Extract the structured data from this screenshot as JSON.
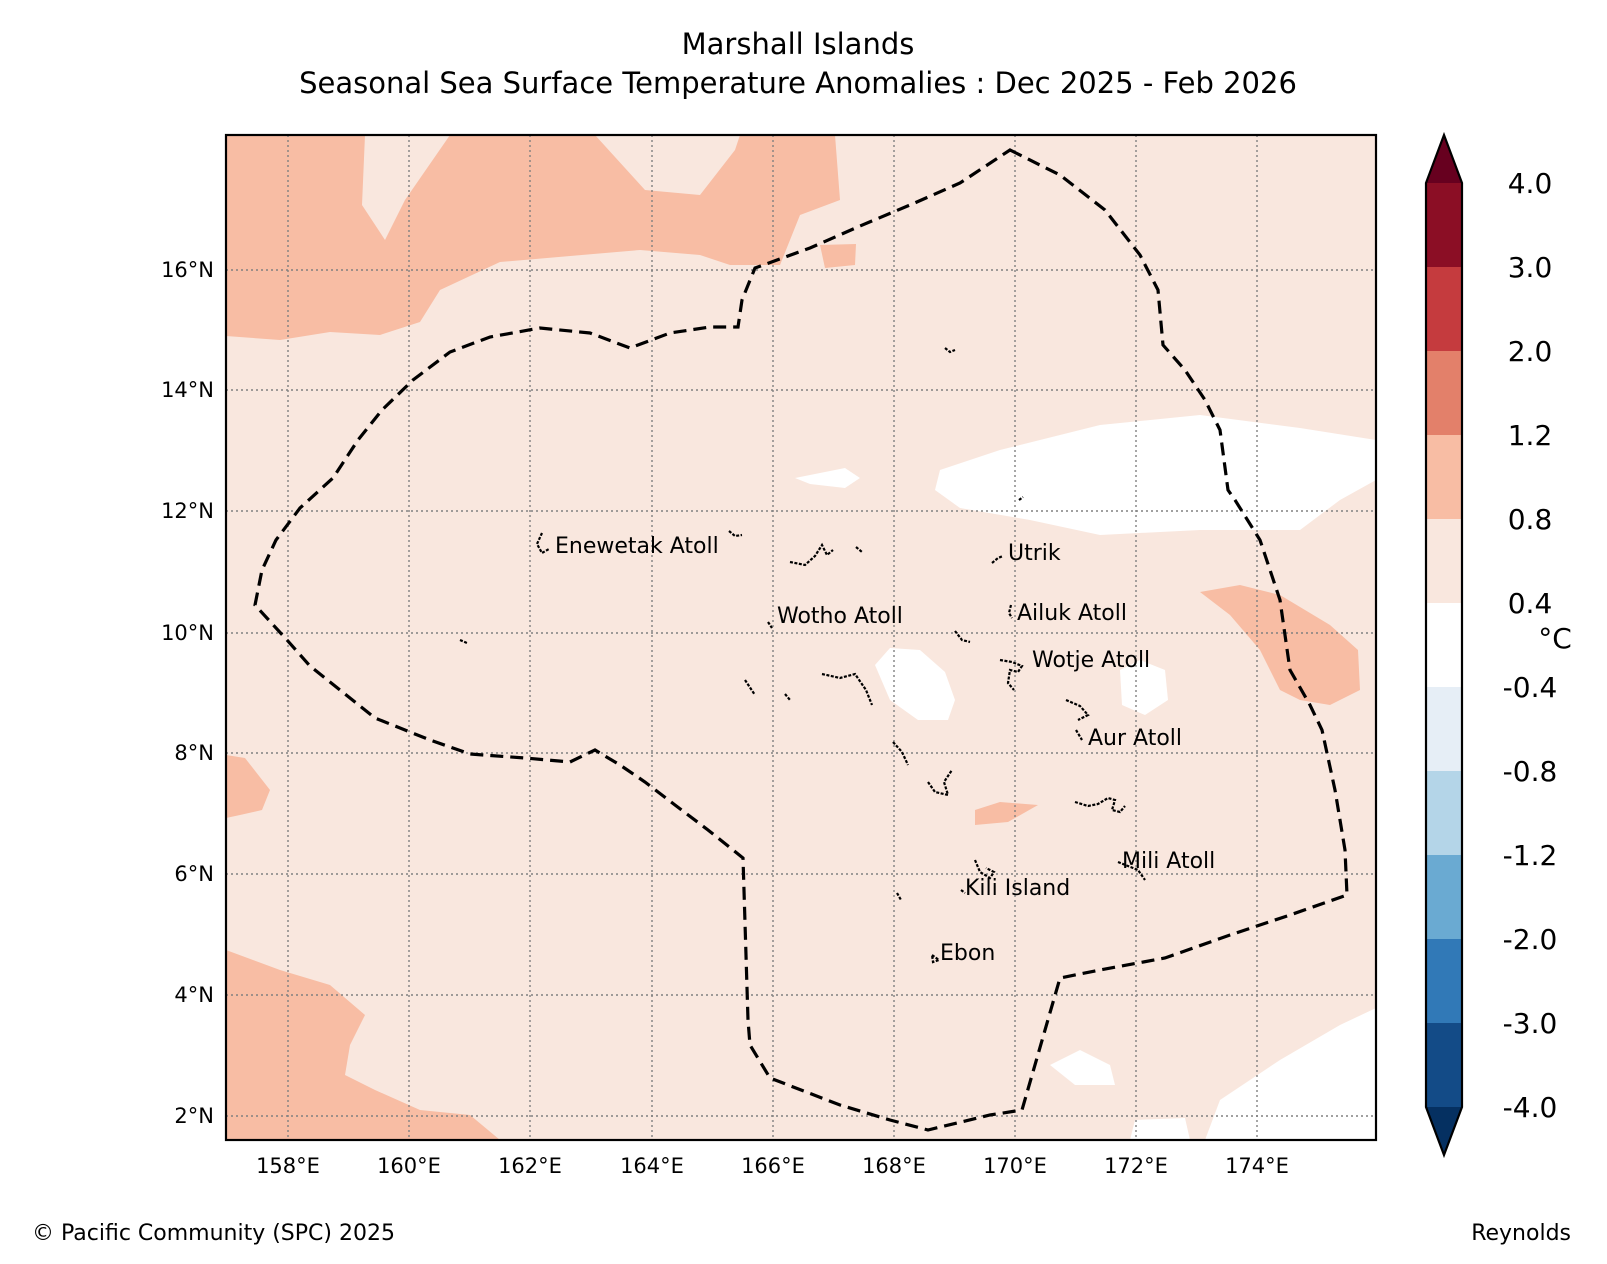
{
  "map": {
    "title_line1": "Marshall Islands",
    "title_line2": "Seasonal Sea Surface Temperature Anomalies : Dec 2025 - Feb 2026",
    "lat_labels": [
      "16°N",
      "14°N",
      "12°N",
      "10°N",
      "8°N",
      "6°N",
      "4°N",
      "2°N"
    ],
    "lon_labels": [
      "158°E",
      "160°E",
      "162°E",
      "164°E",
      "166°E",
      "168°E",
      "170°E",
      "172°E",
      "174°E"
    ],
    "places": [
      "Enewetak Atoll",
      "Utrik",
      "Ailuk Atoll",
      "Wotho Atoll",
      "Wotje Atoll",
      "Aur Atoll",
      "Mili Atoll",
      "Kili Island",
      "Ebon"
    ]
  },
  "colorbar": {
    "unit": "°C",
    "labels": [
      "4.0",
      "3.0",
      "2.0",
      "1.2",
      "0.8",
      "0.4",
      "-0.4",
      "-0.8",
      "-1.2",
      "-2.0",
      "-3.0",
      "-4.0"
    ],
    "colors": [
      "#67001f",
      "#8b0e25",
      "#c53b3e",
      "#e3806a",
      "#f8bda4",
      "#f9e7de",
      "#ffffff",
      "#e6eef6",
      "#b4d5e8",
      "#6aaad2",
      "#3179b7",
      "#134b87",
      "#053061"
    ]
  },
  "footer": {
    "copyright": "© Pacific Community (SPC) 2025",
    "source": "Reynolds"
  }
}
